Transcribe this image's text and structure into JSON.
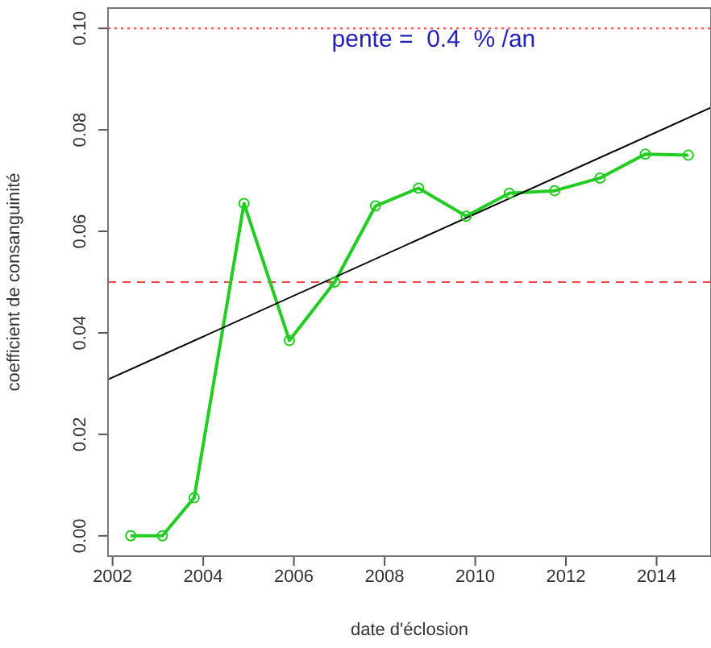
{
  "chart_data": {
    "type": "line",
    "xlabel": "date d'éclosion",
    "ylabel": "coefficient de consanguinité",
    "annotations": [
      "pente =  0.4  % /an"
    ],
    "x": [
      2002.4,
      2003.1,
      2003.8,
      2004.9,
      2005.9,
      2006.9,
      2007.8,
      2008.75,
      2009.8,
      2010.75,
      2011.75,
      2012.75,
      2013.75,
      2014.7
    ],
    "series": [
      {
        "color": "#22cc22",
        "values": [
          0,
          0,
          0.0075,
          0.0655,
          0.0385,
          0.05,
          0.065,
          0.0685,
          0.063,
          0.0675,
          0.068,
          0.0705,
          0.0752,
          0.075
        ]
      },
      {
        "type": "line",
        "x": [
          2001.9,
          2015.2
        ],
        "values": [
          0.0308,
          0.0844
        ],
        "color": "#000000",
        "marker": "none"
      }
    ],
    "xlim": [
      2001.9,
      2015.2
    ],
    "ylim": [
      -0.004,
      0.104
    ],
    "xticks": [
      2002,
      2004,
      2006,
      2008,
      2010,
      2012,
      2014
    ],
    "yticks": [
      {
        "value": 0,
        "label": "0.00"
      },
      {
        "value": 0.02,
        "label": "0.02"
      },
      {
        "value": 0.04,
        "label": "0.04"
      },
      {
        "value": 0.06,
        "label": "0.06"
      },
      {
        "value": 0.08,
        "label": "0.08"
      },
      {
        "value": 0.1,
        "label": "0.10"
      }
    ],
    "ref_lines": [
      {
        "axis": "y",
        "value": 0.05,
        "color": "#ff4444",
        "line_style": "dashed"
      },
      {
        "axis": "y",
        "value": 0.1,
        "color": "#ff4444",
        "line_style": "dotted"
      }
    ],
    "marker": "circle",
    "line_style": "solid",
    "grid": false
  }
}
